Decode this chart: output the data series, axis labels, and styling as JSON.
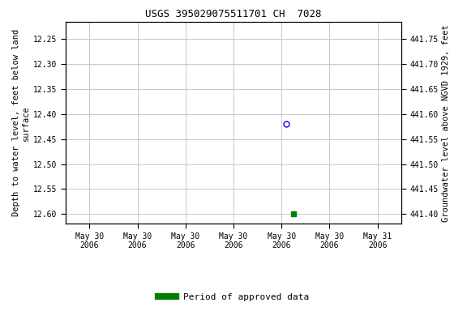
{
  "title": "USGS 395029075511701 CH  7028",
  "ylabel_left": "Depth to water level, feet below land\nsurface",
  "ylabel_right": "Groundwater level above NGVD 1929, feet",
  "ylim_left": [
    12.62,
    12.215
  ],
  "ylim_right": [
    441.38,
    441.785
  ],
  "yticks_left": [
    12.25,
    12.3,
    12.35,
    12.4,
    12.45,
    12.5,
    12.55,
    12.6
  ],
  "yticks_right": [
    441.4,
    441.45,
    441.5,
    441.55,
    441.6,
    441.65,
    441.7,
    441.75
  ],
  "xlim": [
    0,
    7
  ],
  "xtick_positions": [
    0.5,
    1.5,
    2.5,
    3.5,
    4.5,
    5.5,
    6.5
  ],
  "xtick_labels": [
    "May 30\n2006",
    "May 30\n2006",
    "May 30\n2006",
    "May 30\n2006",
    "May 30\n2006",
    "May 30\n2006",
    "May 31\n2006"
  ],
  "data_blue_x": 4.6,
  "data_blue_y": 12.42,
  "data_green_x": 4.75,
  "data_green_y": 12.6,
  "bg_color": "#ffffff",
  "grid_color": "#c8c8c8",
  "title_fontsize": 9,
  "axis_label_fontsize": 7.5,
  "tick_fontsize": 7,
  "legend_label": "Period of approved data",
  "legend_color": "#008000",
  "legend_fontsize": 8
}
